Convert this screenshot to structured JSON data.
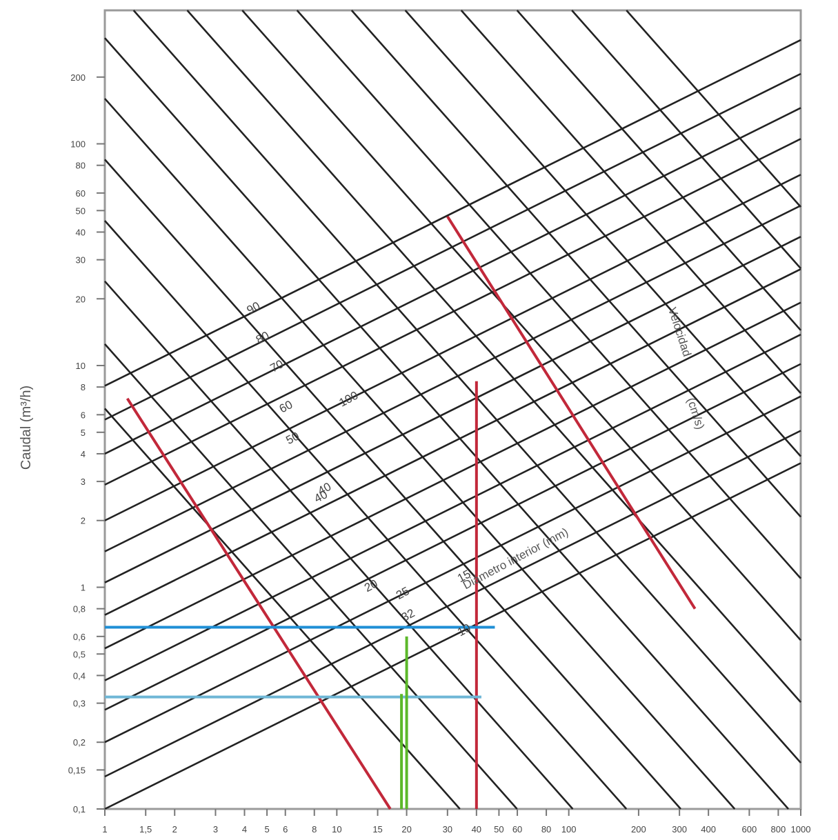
{
  "chart_data": {
    "type": "line",
    "title": "",
    "xlabel": "",
    "ylabel": "Caudal (m³/h)",
    "x_scale": "log",
    "y_scale": "log",
    "xlim": [
      1,
      1000
    ],
    "ylim": [
      0.1,
      400
    ],
    "grid": false,
    "x_ticks": [
      {
        "v": 1,
        "label": "1"
      },
      {
        "v": 1.5,
        "label": "1,5"
      },
      {
        "v": 2,
        "label": "2"
      },
      {
        "v": 3,
        "label": "3"
      },
      {
        "v": 4,
        "label": "4"
      },
      {
        "v": 5,
        "label": "5"
      },
      {
        "v": 6,
        "label": "6"
      },
      {
        "v": 8,
        "label": "8"
      },
      {
        "v": 10,
        "label": "10"
      },
      {
        "v": 15,
        "label": "15"
      },
      {
        "v": 20,
        "label": "20"
      },
      {
        "v": 30,
        "label": "30"
      },
      {
        "v": 40,
        "label": "40"
      },
      {
        "v": 50,
        "label": "50"
      },
      {
        "v": 60,
        "label": "60"
      },
      {
        "v": 80,
        "label": "80"
      },
      {
        "v": 100,
        "label": "100"
      },
      {
        "v": 200,
        "label": "200"
      },
      {
        "v": 300,
        "label": "300"
      },
      {
        "v": 400,
        "label": "400"
      },
      {
        "v": 600,
        "label": "600"
      },
      {
        "v": 800,
        "label": "800"
      },
      {
        "v": 1000,
        "label": "1000"
      }
    ],
    "y_ticks": [
      {
        "v": 0.1,
        "label": "0,1"
      },
      {
        "v": 0.15,
        "label": "0,15"
      },
      {
        "v": 0.2,
        "label": "0,2"
      },
      {
        "v": 0.3,
        "label": "0,3"
      },
      {
        "v": 0.4,
        "label": "0,4"
      },
      {
        "v": 0.5,
        "label": "0,5"
      },
      {
        "v": 0.6,
        "label": "0,6"
      },
      {
        "v": 0.8,
        "label": "0,8"
      },
      {
        "v": 1,
        "label": "1"
      },
      {
        "v": 2,
        "label": "2"
      },
      {
        "v": 3,
        "label": "3"
      },
      {
        "v": 4,
        "label": "4"
      },
      {
        "v": 5,
        "label": "5"
      },
      {
        "v": 6,
        "label": "6"
      },
      {
        "v": 8,
        "label": "8"
      },
      {
        "v": 10,
        "label": "10"
      },
      {
        "v": 20,
        "label": "20"
      },
      {
        "v": 30,
        "label": "30"
      },
      {
        "v": 40,
        "label": "40"
      },
      {
        "v": 50,
        "label": "50"
      },
      {
        "v": 60,
        "label": "60"
      },
      {
        "v": 80,
        "label": "80"
      },
      {
        "v": 100,
        "label": "100"
      },
      {
        "v": 200,
        "label": "200"
      }
    ],
    "diameter_lines": {
      "slope": 0.52,
      "y_at_x1": [
        0.1,
        0.14,
        0.2,
        0.28,
        0.38,
        0.53,
        0.75,
        1.05,
        1.45,
        2.0,
        2.9,
        4.0,
        5.7,
        8.1
      ],
      "labels": [
        {
          "text": "10",
          "x": 34,
          "y": 0.6
        },
        {
          "text": "15",
          "x": 34,
          "y": 1.05
        },
        {
          "text": "20",
          "x": 13.5,
          "y": 0.95
        },
        {
          "text": "25",
          "x": 18.5,
          "y": 0.88
        },
        {
          "text": "32",
          "x": 19.5,
          "y": 0.7
        },
        {
          "text": "40",
          "x": 8.5,
          "y": 2.6
        }
      ]
    },
    "velocity_lines": {
      "y_at_x1": [
        6.4,
        12.5,
        24,
        45,
        85,
        160,
        300,
        560,
        1050,
        2000,
        3800,
        7200,
        13500,
        26000,
        50000,
        95000,
        180000
      ],
      "slope": -1.18,
      "labels": [
        {
          "text": "90",
          "x": 4.2,
          "y": 17
        },
        {
          "text": "80",
          "x": 4.6,
          "y": 12.5
        },
        {
          "text": "70",
          "x": 5.3,
          "y": 9.3
        },
        {
          "text": "60",
          "x": 5.8,
          "y": 6.1
        },
        {
          "text": "50",
          "x": 6.2,
          "y": 4.4
        },
        {
          "text": "40",
          "x": 8.2,
          "y": 2.4
        },
        {
          "text": "100",
          "x": 10.5,
          "y": 6.5
        }
      ]
    },
    "axis_annotations": [
      {
        "text": "Velocidad",
        "x": 290,
        "y": 14,
        "angle": 72
      },
      {
        "text": "(cm/s)",
        "x": 340,
        "y": 6,
        "angle": 72
      },
      {
        "text": "Diámetro interior (mm)",
        "x": 60,
        "y": 1.3,
        "angle": -28
      }
    ],
    "reference_lines": [
      {
        "color": "#c2283a",
        "points": [
          [
            1.25,
            7.1
          ],
          [
            17,
            0.1
          ]
        ]
      },
      {
        "color": "#c2283a",
        "points": [
          [
            30,
            47
          ],
          [
            350,
            0.8
          ]
        ]
      },
      {
        "color": "#c2283a",
        "points": [
          [
            40,
            8.5
          ],
          [
            40,
            0.1
          ]
        ]
      },
      {
        "color": "#1f8fd6",
        "points": [
          [
            1,
            0.66
          ],
          [
            48,
            0.66
          ]
        ]
      },
      {
        "color": "#6fb7d6",
        "points": [
          [
            1,
            0.32
          ],
          [
            42,
            0.32
          ]
        ]
      },
      {
        "color": "#5cb82a",
        "points": [
          [
            20,
            0.6
          ],
          [
            20,
            0.1
          ]
        ]
      },
      {
        "color": "#5cb82a",
        "points": [
          [
            19,
            0.33
          ],
          [
            19,
            0.1
          ]
        ]
      }
    ]
  }
}
